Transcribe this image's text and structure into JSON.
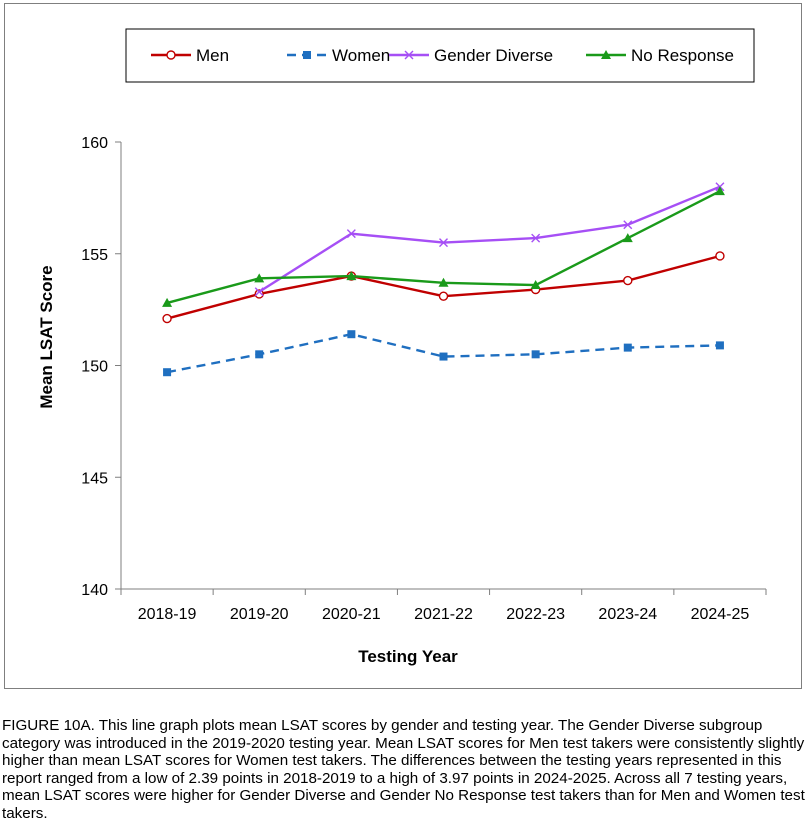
{
  "chart_data": {
    "type": "line",
    "xlabel": "Testing Year",
    "ylabel": "Mean LSAT Score",
    "ylim": [
      140,
      160
    ],
    "yticks": [
      "140",
      "145",
      "150",
      "155",
      "160"
    ],
    "categories": [
      "2018-19",
      "2019-20",
      "2020-21",
      "2021-22",
      "2022-23",
      "2023-24",
      "2024-25"
    ],
    "legend_position": "top",
    "grid": false,
    "series": [
      {
        "name": "Men",
        "color": "#c00000",
        "marker": "open-circle",
        "line": "solid",
        "values": [
          152.1,
          153.2,
          154.0,
          153.1,
          153.4,
          153.8,
          154.9
        ]
      },
      {
        "name": "Women",
        "color": "#1f6fc0",
        "marker": "square",
        "line": "dashed",
        "values": [
          149.7,
          150.5,
          151.4,
          150.4,
          150.5,
          150.8,
          150.9
        ]
      },
      {
        "name": "Gender Diverse",
        "color": "#a64ff5",
        "marker": "x",
        "line": "solid",
        "values": [
          null,
          153.3,
          155.9,
          155.5,
          155.7,
          156.3,
          158.0
        ]
      },
      {
        "name": "No Response",
        "color": "#1a9a1a",
        "marker": "triangle",
        "line": "solid",
        "values": [
          152.8,
          153.9,
          154.0,
          153.7,
          153.6,
          155.7,
          157.8
        ]
      }
    ]
  },
  "caption": "FIGURE 10A. This line graph plots mean LSAT scores by gender and testing year. The Gender Diverse subgroup category was introduced in the 2019-2020 testing year. Mean LSAT scores for Men test takers were consistently slightly higher than mean LSAT scores for Women test takers. The differences between the testing years represented in this report ranged from a low of 2.39 points in 2018-2019 to a high of 3.97 points in 2024-2025. Across all 7 testing years, mean LSAT scores were higher for Gender Diverse and Gender No Response test takers than for Men and Women test takers."
}
